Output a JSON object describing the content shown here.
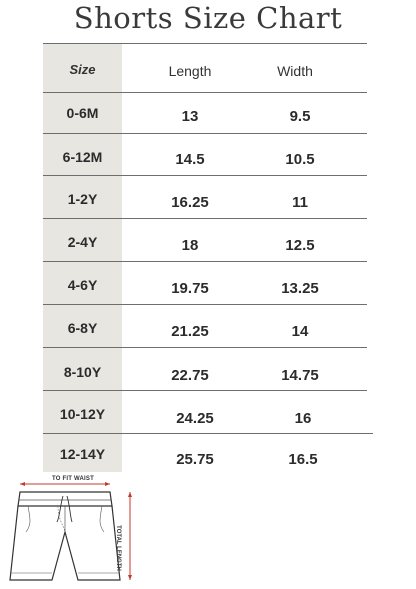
{
  "title": "Shorts Size Chart",
  "headers": {
    "size": "Size",
    "length": "Length",
    "width": "Width"
  },
  "rows": [
    {
      "size": "0-6M",
      "length": "13",
      "width": "9.5"
    },
    {
      "size": "6-12M",
      "length": "14.5",
      "width": "10.5"
    },
    {
      "size": "1-2Y",
      "length": "16.25",
      "width": "11"
    },
    {
      "size": "2-4Y",
      "length": "18",
      "width": "12.5"
    },
    {
      "size": "4-6Y",
      "length": "19.75",
      "width": "13.25"
    },
    {
      "size": "6-8Y",
      "length": "21.25",
      "width": "14"
    },
    {
      "size": "8-10Y",
      "length": "22.75",
      "width": "14.75"
    },
    {
      "size": "10-12Y",
      "length": "24.25",
      "width": "16"
    },
    {
      "size": "12-14Y",
      "length": "25.75",
      "width": "16.5"
    }
  ],
  "diagram": {
    "waist_label": "TO FIT WAIST",
    "length_label": "TOTAL LENGTH",
    "accent_color": "#c0392b"
  }
}
